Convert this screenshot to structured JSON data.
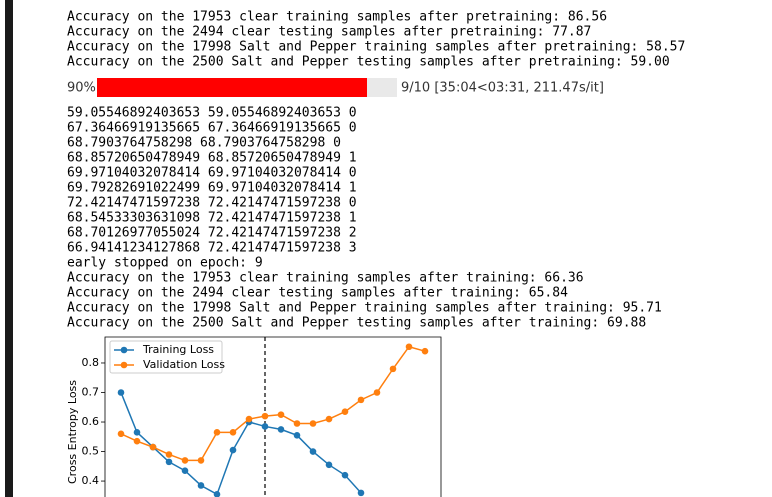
{
  "output_before": [
    "Accuracy on the 17953 clear training samples after pretraining: 86.56",
    "Accuracy on the 2494 clear testing samples after pretraining: 77.87",
    "Accuracy on the 17998 Salt and Pepper training samples after pretraining: 58.57",
    "Accuracy on the 2500 Salt and Pepper testing samples after pretraining: 59.00"
  ],
  "progress": {
    "label": "90%",
    "value": 90,
    "status": "9/10 [35:04<03:31, 211.47s/it]"
  },
  "output_after": [
    "59.05546892403653 59.05546892403653 0",
    "67.36466919135665 67.36466919135665 0",
    "68.7903764758298 68.7903764758298 0",
    "68.85720650478949 68.85720650478949 1",
    "69.97104032078414 69.97104032078414 0",
    "69.79282691022499 69.97104032078414 1",
    "72.42147471597238 72.42147471597238 0",
    "68.54533303631098 72.42147471597238 1",
    "68.70126977055024 72.42147471597238 2",
    "66.94141234127868 72.42147471597238 3",
    "early stopped on epoch: 9",
    "Accuracy on the 17953 clear training samples after training: 66.36",
    "Accuracy on the 2494 clear testing samples after training: 65.84",
    "Accuracy on the 17998 Salt and Pepper training samples after training: 95.71",
    "Accuracy on the 2500 Salt and Pepper testing samples after training: 69.88"
  ],
  "chart_data": {
    "type": "line",
    "ylabel": "Cross Entropy Loss",
    "x": [
      0,
      1,
      2,
      3,
      4,
      5,
      6,
      7,
      8,
      9,
      10,
      11,
      12,
      13,
      14,
      15,
      16,
      17,
      18,
      19
    ],
    "xlim": [
      -1,
      20
    ],
    "ylim": [
      0.346,
      0.888
    ],
    "yticks": [
      0.4,
      0.5,
      0.6,
      0.7,
      0.8
    ],
    "vline_x": 9,
    "series": [
      {
        "name": "Training Loss",
        "color": "#1f77b4",
        "values": [
          0.7,
          0.565,
          0.515,
          0.465,
          0.435,
          0.385,
          0.355,
          0.505,
          0.6,
          0.585,
          0.575,
          0.555,
          0.5,
          0.455,
          0.42,
          0.36,
          null,
          null,
          null,
          null
        ]
      },
      {
        "name": "Validation Loss",
        "color": "#ff7f0e",
        "values": [
          0.56,
          0.535,
          0.515,
          0.49,
          0.47,
          0.47,
          0.565,
          0.565,
          0.61,
          0.62,
          0.625,
          0.595,
          0.595,
          0.61,
          0.635,
          0.675,
          0.7,
          0.78,
          0.855,
          0.84
        ]
      }
    ]
  }
}
